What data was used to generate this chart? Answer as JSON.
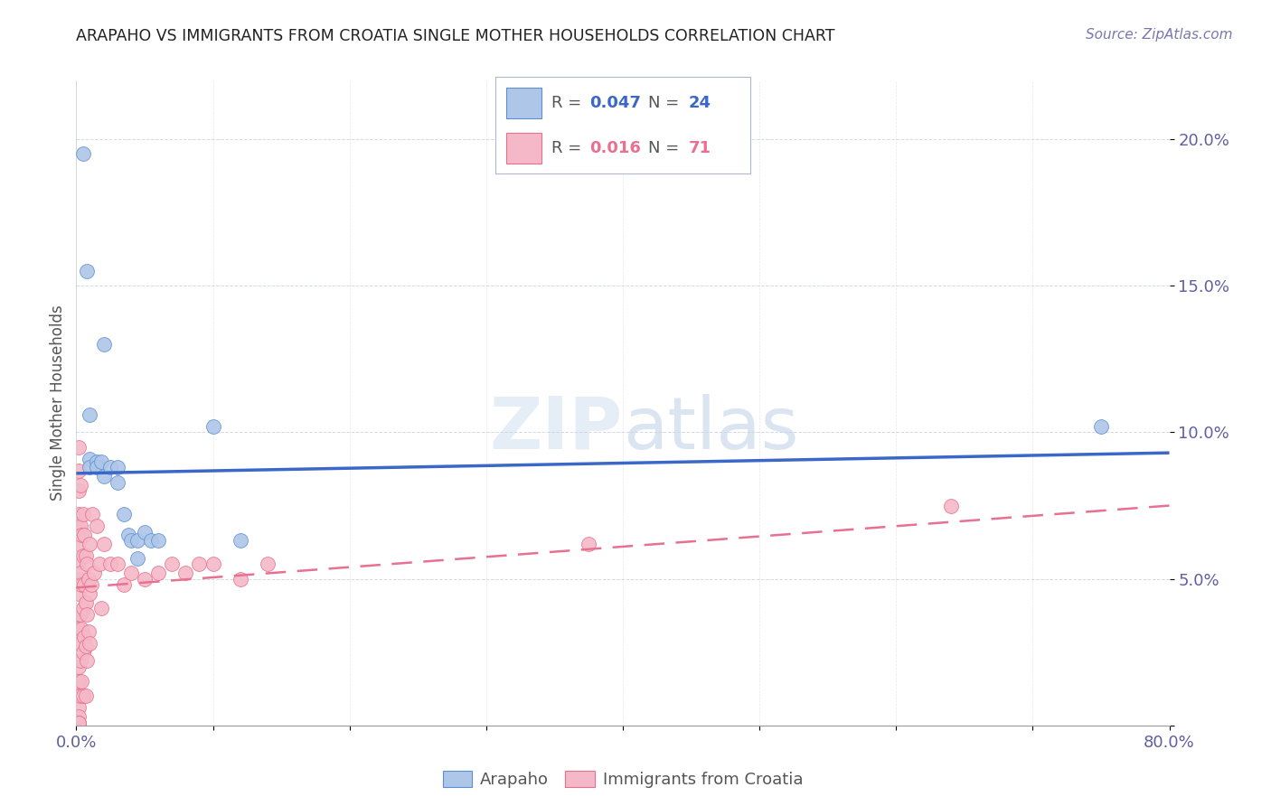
{
  "title": "ARAPAHO VS IMMIGRANTS FROM CROATIA SINGLE MOTHER HOUSEHOLDS CORRELATION CHART",
  "source": "Source: ZipAtlas.com",
  "ylabel": "Single Mother Households",
  "xlim": [
    0.0,
    0.8
  ],
  "ylim": [
    0.0,
    0.22
  ],
  "xticks": [
    0.0,
    0.1,
    0.2,
    0.3,
    0.4,
    0.5,
    0.6,
    0.7,
    0.8
  ],
  "xticklabels": [
    "0.0%",
    "",
    "",
    "",
    "",
    "",
    "",
    "",
    "80.0%"
  ],
  "yticks": [
    0.0,
    0.05,
    0.1,
    0.15,
    0.2
  ],
  "yticklabels": [
    "",
    "5.0%",
    "10.0%",
    "15.0%",
    "20.0%"
  ],
  "arapaho_color": "#aec6e8",
  "croatia_color": "#f5b8c8",
  "arapaho_edge_color": "#5b8fd4",
  "croatia_edge_color": "#e8708a",
  "arapaho_line_color": "#3a67c8",
  "croatia_line_color": "#e87090",
  "watermark_zip": "ZIP",
  "watermark_atlas": "atlas",
  "arapaho_r": "0.047",
  "arapaho_n": "24",
  "croatia_r": "0.016",
  "croatia_n": "71",
  "arapaho_points_x": [
    0.005,
    0.008,
    0.01,
    0.01,
    0.01,
    0.015,
    0.015,
    0.018,
    0.02,
    0.02,
    0.025,
    0.03,
    0.03,
    0.035,
    0.038,
    0.04,
    0.045,
    0.045,
    0.05,
    0.055,
    0.06,
    0.1,
    0.12,
    0.75
  ],
  "arapaho_points_y": [
    0.195,
    0.155,
    0.106,
    0.091,
    0.088,
    0.09,
    0.088,
    0.09,
    0.13,
    0.085,
    0.088,
    0.088,
    0.083,
    0.072,
    0.065,
    0.063,
    0.063,
    0.057,
    0.066,
    0.063,
    0.063,
    0.102,
    0.063,
    0.102
  ],
  "croatia_points_x": [
    0.002,
    0.002,
    0.002,
    0.002,
    0.002,
    0.002,
    0.002,
    0.002,
    0.002,
    0.002,
    0.002,
    0.002,
    0.002,
    0.002,
    0.002,
    0.002,
    0.002,
    0.002,
    0.002,
    0.002,
    0.003,
    0.003,
    0.003,
    0.003,
    0.003,
    0.003,
    0.004,
    0.004,
    0.004,
    0.004,
    0.005,
    0.005,
    0.005,
    0.005,
    0.005,
    0.006,
    0.006,
    0.006,
    0.007,
    0.007,
    0.007,
    0.007,
    0.008,
    0.008,
    0.008,
    0.009,
    0.009,
    0.01,
    0.01,
    0.01,
    0.011,
    0.012,
    0.013,
    0.015,
    0.017,
    0.018,
    0.02,
    0.025,
    0.03,
    0.035,
    0.04,
    0.05,
    0.06,
    0.07,
    0.08,
    0.09,
    0.1,
    0.12,
    0.14,
    0.375,
    0.64
  ],
  "croatia_points_y": [
    0.095,
    0.087,
    0.08,
    0.072,
    0.067,
    0.062,
    0.056,
    0.05,
    0.045,
    0.038,
    0.033,
    0.028,
    0.02,
    0.015,
    0.01,
    0.006,
    0.003,
    0.001,
    0.001,
    0.001,
    0.082,
    0.068,
    0.052,
    0.038,
    0.022,
    0.01,
    0.065,
    0.048,
    0.033,
    0.015,
    0.072,
    0.058,
    0.04,
    0.025,
    0.01,
    0.065,
    0.048,
    0.03,
    0.058,
    0.042,
    0.027,
    0.01,
    0.055,
    0.038,
    0.022,
    0.05,
    0.032,
    0.062,
    0.045,
    0.028,
    0.048,
    0.072,
    0.052,
    0.068,
    0.055,
    0.04,
    0.062,
    0.055,
    0.055,
    0.048,
    0.052,
    0.05,
    0.052,
    0.055,
    0.052,
    0.055,
    0.055,
    0.05,
    0.055,
    0.062,
    0.075
  ],
  "arapaho_trend_x": [
    0.0,
    0.8
  ],
  "arapaho_trend_y": [
    0.086,
    0.093
  ],
  "croatia_trend_x": [
    0.0,
    0.8
  ],
  "croatia_trend_y": [
    0.047,
    0.075
  ]
}
